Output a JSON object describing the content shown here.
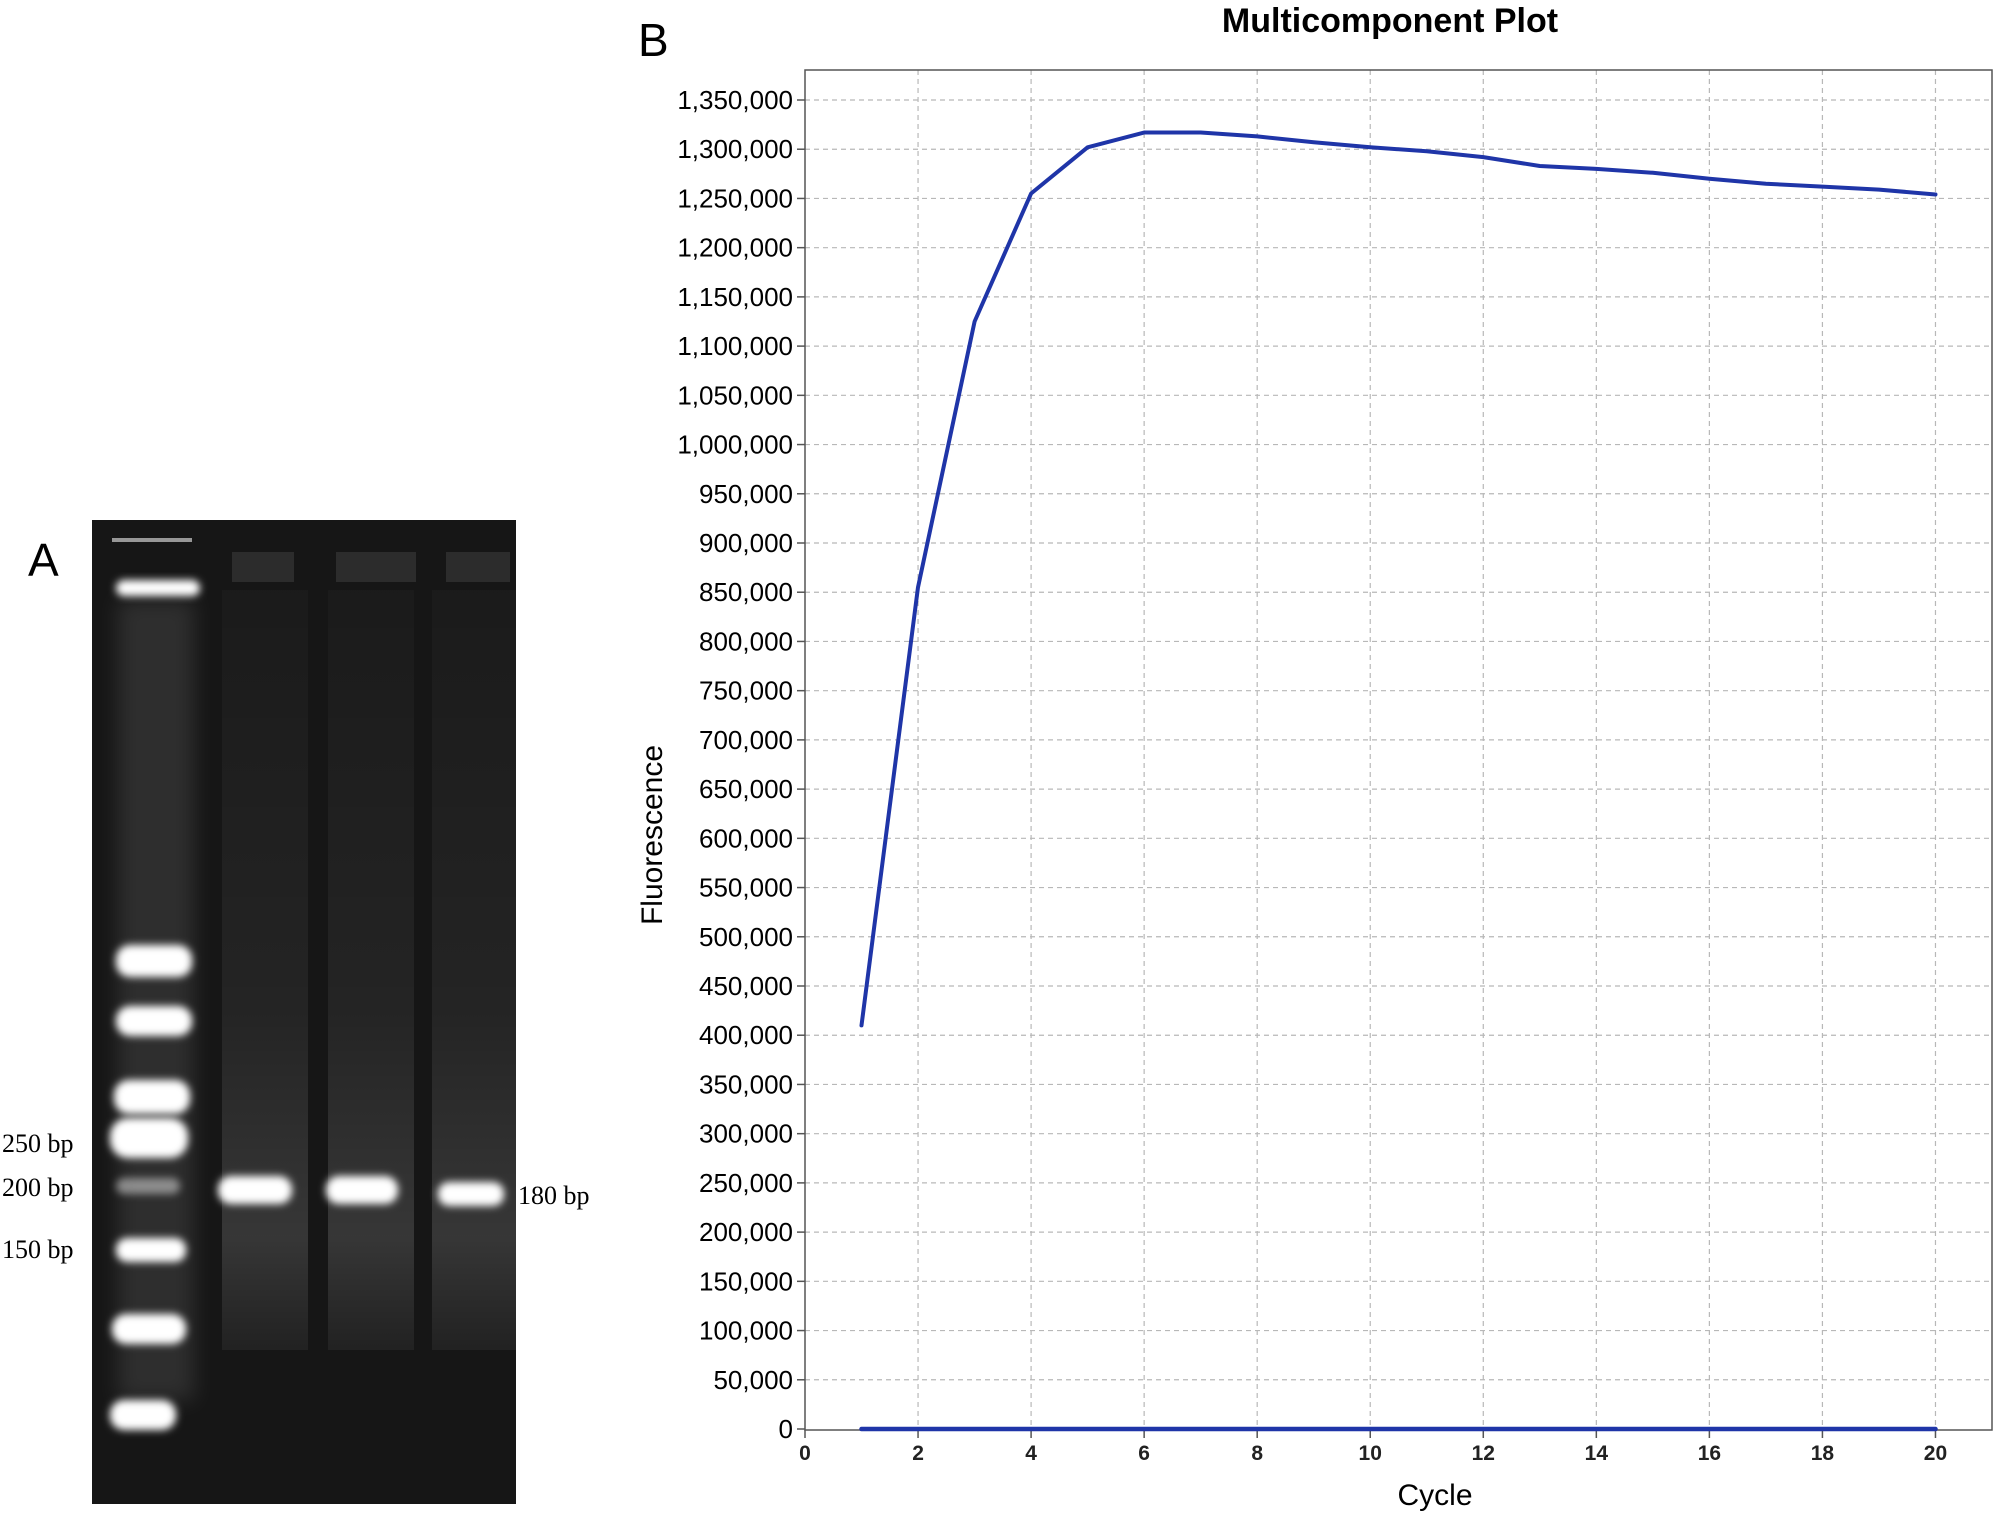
{
  "panel_a": {
    "label": "A",
    "ladder_labels": [
      "250 bp",
      "200 bp",
      "150 bp"
    ],
    "band_label": "180 bp",
    "sample_lanes": 3
  },
  "panel_b": {
    "label": "B"
  },
  "colors": {
    "line": "#1f35a8",
    "grid": "#b8b8b8",
    "gel_background": "#161616"
  },
  "chart_data": {
    "type": "line",
    "title": "Multicomponent Plot",
    "xlabel": "Cycle",
    "ylabel": "Fluorescence",
    "xlim": [
      0,
      21
    ],
    "ylim": [
      0,
      1350000
    ],
    "x_ticks": [
      "0",
      "2",
      "4",
      "6",
      "8",
      "10",
      "12",
      "14",
      "16",
      "18",
      "20"
    ],
    "y_ticks": [
      "0",
      "50,000",
      "100,000",
      "150,000",
      "200,000",
      "250,000",
      "300,000",
      "350,000",
      "400,000",
      "450,000",
      "500,000",
      "550,000",
      "600,000",
      "650,000",
      "700,000",
      "750,000",
      "800,000",
      "850,000",
      "900,000",
      "950,000",
      "1,000,000",
      "1,050,000",
      "1,100,000",
      "1,150,000",
      "1,200,000",
      "1,250,000",
      "1,300,000",
      "1,350,000"
    ],
    "grid": true,
    "series": [
      {
        "x": [
          1,
          2,
          3,
          4,
          5,
          6,
          7,
          8,
          9,
          10,
          11,
          12,
          13,
          14,
          15,
          16,
          17,
          18,
          19,
          20
        ],
        "values": [
          410000,
          855000,
          1125000,
          1255000,
          1302000,
          1317000,
          1317000,
          1313000,
          1307000,
          1302000,
          1298000,
          1292000,
          1283000,
          1280000,
          1276000,
          1270000,
          1265000,
          1262000,
          1259000,
          1254000
        ]
      },
      {
        "x": [
          1,
          20
        ],
        "values": [
          0,
          0
        ]
      }
    ]
  }
}
